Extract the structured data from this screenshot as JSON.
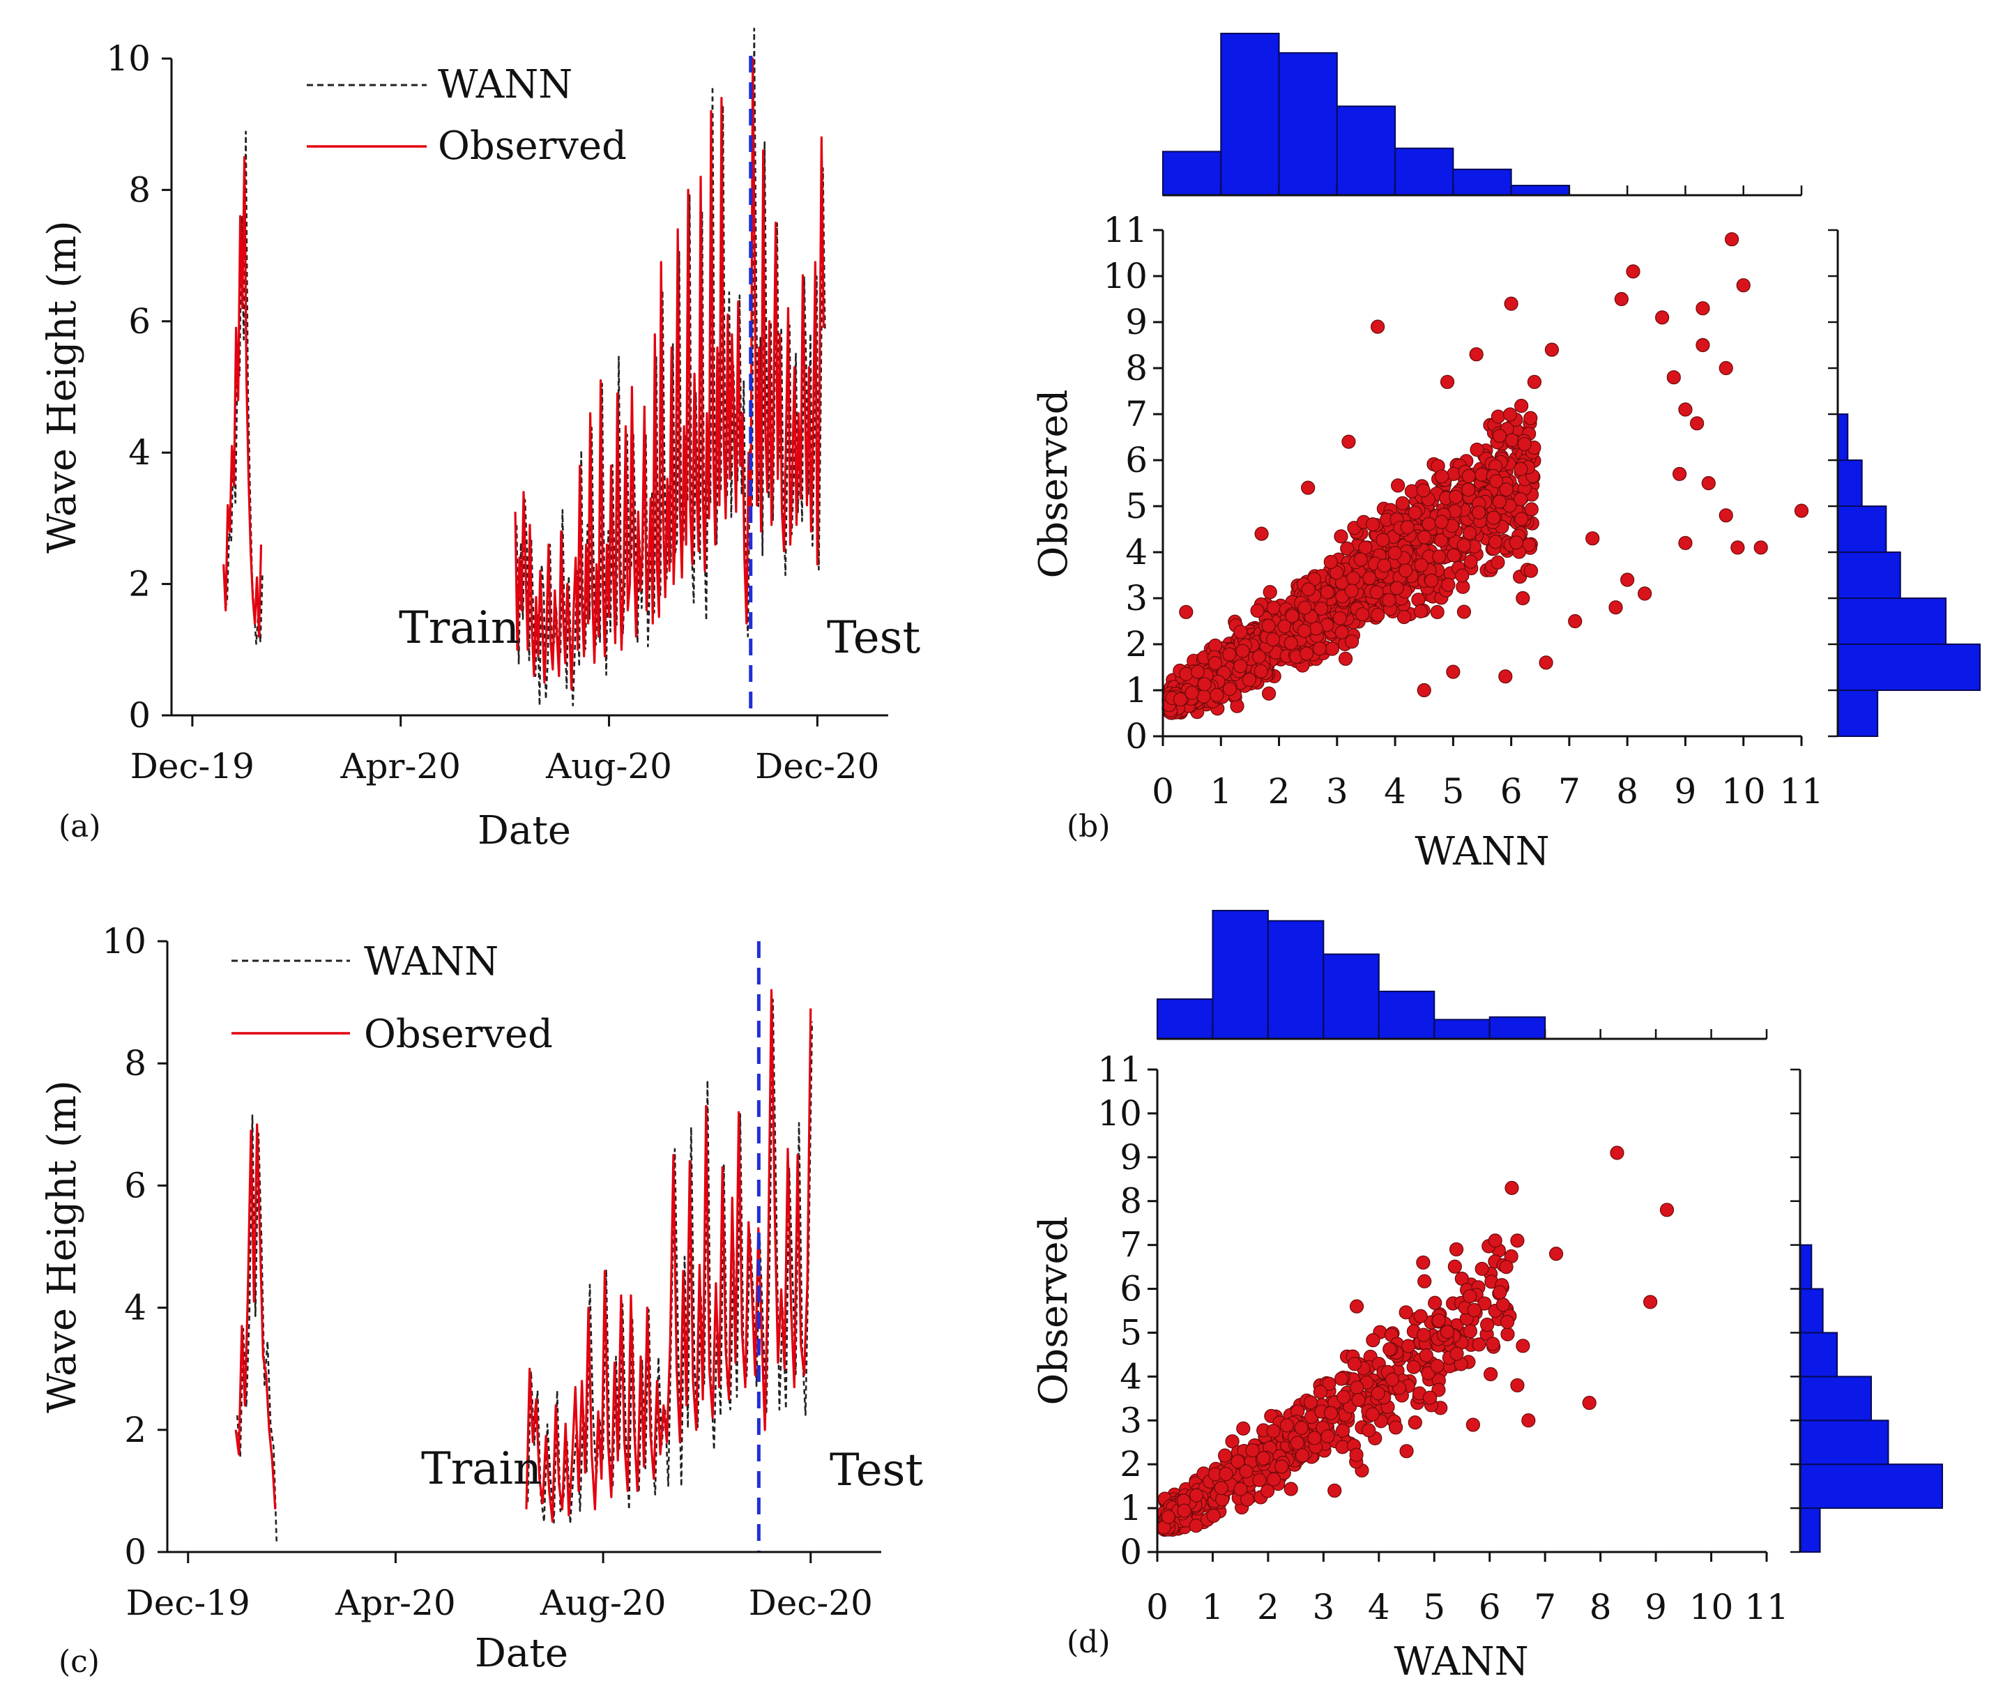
{
  "figure": {
    "panels": [
      "(a)",
      "(b)",
      "(c)",
      "(d)"
    ]
  },
  "colors": {
    "observed": "#e3000f",
    "wann": "#222222",
    "split_line": "#1f2fd6",
    "hist_fill": "#0a18e8",
    "scatter_fill": "#d9131b",
    "scatter_edge": "#6b0a0a"
  },
  "chart_data": [
    {
      "id": "a",
      "type": "line",
      "panel_label": "(a)",
      "xlabel": "Date",
      "ylabel": "Wave Height (m)",
      "ylim": [
        0,
        10
      ],
      "yticks": [
        "0",
        "2",
        "4",
        "6",
        "8",
        "10"
      ],
      "xlim_days": [
        -10,
        334
      ],
      "xticks": [
        {
          "label": "Dec-19",
          "day": 0
        },
        {
          "label": "Apr-20",
          "day": 100
        },
        {
          "label": "Aug-20",
          "day": 200
        },
        {
          "label": "Dec-20",
          "day": 300
        }
      ],
      "legend": [
        "WANN",
        "Observed"
      ],
      "annotations": {
        "train": "Train",
        "test": "Test"
      },
      "split_day": 268,
      "segments": [
        {
          "start_day": 15,
          "end_day": 33,
          "values": [
            2.3,
            1.6,
            3.2,
            2.8,
            4.1,
            3.5,
            5.9,
            4.8,
            7.6,
            6.2,
            8.5,
            5.1,
            3.6,
            2.5,
            1.8,
            1.4,
            2.1,
            1.2,
            2.6
          ]
        },
        {
          "start_day": 155,
          "end_day": 303,
          "values": [
            3.1,
            1.0,
            2.4,
            1.6,
            3.4,
            2.2,
            1.0,
            2.9,
            1.3,
            0.6,
            1.8,
            0.9,
            2.2,
            1.4,
            0.5,
            1.3,
            2.6,
            1.1,
            0.7,
            1.9,
            1.2,
            0.6,
            2.8,
            1.5,
            0.8,
            2.0,
            1.3,
            0.4,
            1.6,
            2.4,
            1.0,
            3.8,
            1.7,
            0.9,
            2.6,
            1.4,
            4.6,
            1.8,
            0.8,
            2.3,
            1.2,
            5.1,
            2.0,
            0.9,
            2.6,
            1.5,
            3.8,
            2.2,
            1.1,
            4.9,
            2.4,
            1.0,
            2.1,
            4.4,
            1.6,
            2.0,
            5.0,
            2.5,
            1.2,
            3.1,
            1.9,
            2.5,
            4.7,
            1.6,
            2.2,
            3.3,
            1.4,
            5.8,
            2.3,
            1.5,
            6.9,
            3.0,
            1.8,
            3.6,
            2.2,
            5.6,
            2.0,
            3.1,
            7.4,
            3.2,
            2.1,
            4.4,
            2.6,
            8.0,
            3.1,
            2.3,
            5.2,
            3.5,
            2.5,
            8.2,
            3.4,
            2.2,
            4.6,
            3.0,
            9.2,
            4.1,
            2.6,
            5.6,
            3.2,
            9.4,
            4.3,
            3.0,
            6.1,
            3.6,
            5.8,
            4.4,
            3.1,
            6.3,
            3.8,
            4.6,
            2.4,
            1.4,
            4.0,
            3.0,
            10.0,
            6.5,
            3.2,
            5.6,
            2.8,
            8.6,
            4.4,
            3.4,
            6.0,
            2.9,
            4.8,
            7.5,
            3.6,
            5.8,
            3.1,
            2.5,
            4.3,
            6.2,
            2.6,
            3.7,
            5.3,
            2.9,
            4.6,
            3.3,
            6.7,
            4.8,
            3.2,
            5.3,
            2.8,
            4.4,
            6.9,
            2.3,
            4.7,
            8.8,
            5.9
          ]
        }
      ]
    },
    {
      "id": "b",
      "type": "scatter",
      "panel_label": "(b)",
      "xlabel": "WANN",
      "ylabel": "Observed",
      "xlim": [
        0,
        11
      ],
      "ylim": [
        0,
        11
      ],
      "xticks": [
        "0",
        "1",
        "2",
        "3",
        "4",
        "5",
        "6",
        "7",
        "8",
        "9",
        "10",
        "11"
      ],
      "yticks": [
        "0",
        "1",
        "2",
        "3",
        "4",
        "5",
        "6",
        "7",
        "8",
        "9",
        "10",
        "11"
      ],
      "points": [
        [
          9.8,
          10.8
        ],
        [
          8.1,
          10.1
        ],
        [
          10.0,
          9.8
        ],
        [
          9.3,
          9.3
        ],
        [
          8.6,
          9.1
        ],
        [
          6.0,
          9.4
        ],
        [
          7.9,
          9.5
        ],
        [
          9.3,
          8.5
        ],
        [
          3.7,
          8.9
        ],
        [
          9.7,
          8.0
        ],
        [
          8.8,
          7.8
        ],
        [
          9.0,
          7.1
        ],
        [
          9.2,
          6.8
        ],
        [
          8.9,
          5.7
        ],
        [
          9.4,
          5.5
        ],
        [
          9.7,
          4.8
        ],
        [
          9.9,
          4.1
        ],
        [
          10.3,
          4.1
        ],
        [
          11.0,
          4.9
        ],
        [
          9.0,
          4.2
        ],
        [
          8.0,
          3.4
        ],
        [
          8.3,
          3.1
        ],
        [
          7.8,
          2.8
        ],
        [
          7.1,
          2.5
        ],
        [
          6.6,
          1.6
        ],
        [
          5.9,
          1.3
        ],
        [
          5.0,
          1.4
        ],
        [
          4.5,
          1.0
        ],
        [
          6.2,
          3.0
        ],
        [
          7.4,
          4.3
        ],
        [
          6.4,
          7.7
        ],
        [
          6.7,
          8.4
        ],
        [
          5.4,
          8.3
        ],
        [
          4.9,
          7.7
        ],
        [
          3.2,
          6.4
        ],
        [
          2.5,
          5.4
        ],
        [
          1.7,
          4.4
        ],
        [
          0.4,
          2.7
        ],
        [
          0.6,
          1.4
        ],
        [
          0.3,
          0.8
        ]
      ],
      "cloud_count": 1500,
      "x_hist": {
        "bins": [
          0,
          1,
          2,
          3,
          4,
          5,
          6,
          7,
          8,
          9,
          10,
          11
        ],
        "freq": [
          0.27,
          1.0,
          0.88,
          0.55,
          0.29,
          0.16,
          0.06,
          0,
          0,
          0,
          0
        ]
      },
      "y_hist": {
        "bins": [
          0,
          1,
          2,
          3,
          4,
          5,
          6,
          7
        ],
        "freq": [
          0.28,
          1.0,
          0.76,
          0.44,
          0.34,
          0.17,
          0.07
        ]
      }
    },
    {
      "id": "c",
      "type": "line",
      "panel_label": "(c)",
      "xlabel": "Date",
      "ylabel": "Wave Height (m)",
      "ylim": [
        0,
        10
      ],
      "yticks": [
        "0",
        "2",
        "4",
        "6",
        "8",
        "10"
      ],
      "xlim_days": [
        -10,
        334
      ],
      "xticks": [
        {
          "label": "Dec-19",
          "day": 0
        },
        {
          "label": "Apr-20",
          "day": 100
        },
        {
          "label": "Aug-20",
          "day": 200
        },
        {
          "label": "Dec-20",
          "day": 300
        }
      ],
      "legend": [
        "WANN",
        "Observed"
      ],
      "annotations": {
        "train": "Train",
        "test": "Test"
      },
      "split_day": 275,
      "segments": [
        {
          "start_day": 23,
          "end_day": 42,
          "values": [
            2.0,
            1.6,
            3.7,
            2.4,
            4.3,
            6.9,
            4.1,
            7.0,
            5.1,
            3.2,
            2.9,
            2.0,
            1.5,
            0.7
          ]
        },
        {
          "start_day": 163,
          "end_day": 300,
          "values": [
            0.7,
            3.0,
            1.8,
            2.5,
            1.2,
            0.8,
            1.9,
            1.0,
            0.5,
            2.4,
            1.1,
            0.7,
            2.1,
            0.6,
            1.5,
            2.7,
            1.0,
            2.8,
            1.3,
            4.0,
            1.6,
            0.7,
            2.3,
            1.2,
            4.6,
            1.8,
            0.9,
            3.1,
            1.5,
            4.2,
            1.8,
            1.0,
            4.2,
            2.0,
            1.0,
            3.2,
            1.4,
            4.0,
            1.9,
            1.2,
            2.8,
            1.6,
            2.4,
            1.8,
            3.4,
            6.5,
            3.0,
            1.8,
            4.6,
            2.4,
            6.4,
            2.8,
            2.0,
            4.7,
            2.5,
            7.3,
            3.0,
            2.2,
            4.4,
            2.7,
            6.3,
            3.3,
            2.5,
            5.8,
            3.1,
            7.2,
            3.6,
            2.7,
            5.4,
            4.3,
            2.9,
            5.3,
            3.6,
            2.0,
            4.8,
            9.2,
            5.6,
            3.1,
            4.3,
            3.0,
            6.6,
            4.0,
            2.7,
            6.5,
            3.4,
            2.9,
            4.4,
            8.9
          ]
        }
      ]
    },
    {
      "id": "d",
      "type": "scatter",
      "panel_label": "(d)",
      "xlabel": "WANN",
      "ylabel": "Observed",
      "xlim": [
        0,
        11
      ],
      "ylim": [
        0,
        11
      ],
      "xticks": [
        "0",
        "1",
        "2",
        "3",
        "4",
        "5",
        "6",
        "7",
        "8",
        "9",
        "10",
        "11"
      ],
      "yticks": [
        "0",
        "1",
        "2",
        "3",
        "4",
        "5",
        "6",
        "7",
        "8",
        "9",
        "10",
        "11"
      ],
      "points": [
        [
          8.3,
          9.1
        ],
        [
          6.4,
          8.3
        ],
        [
          9.2,
          7.8
        ],
        [
          6.1,
          7.1
        ],
        [
          6.5,
          7.1
        ],
        [
          7.2,
          6.8
        ],
        [
          5.4,
          6.9
        ],
        [
          6.3,
          6.5
        ],
        [
          8.9,
          5.7
        ],
        [
          6.6,
          4.7
        ],
        [
          6.5,
          3.8
        ],
        [
          6.7,
          3.0
        ],
        [
          7.8,
          3.4
        ],
        [
          5.7,
          2.9
        ],
        [
          4.5,
          2.3
        ],
        [
          3.2,
          1.4
        ],
        [
          3.6,
          5.6
        ],
        [
          4.8,
          6.6
        ],
        [
          0.2,
          0.8
        ],
        [
          0.7,
          0.6
        ]
      ],
      "cloud_count": 560,
      "x_hist": {
        "bins": [
          0,
          1,
          2,
          3,
          4,
          5,
          6,
          7,
          8,
          9,
          10,
          11
        ],
        "freq": [
          0.31,
          1.0,
          0.92,
          0.66,
          0.37,
          0.15,
          0.17,
          0,
          0,
          0,
          0
        ]
      },
      "y_hist": {
        "bins": [
          0,
          1,
          2,
          3,
          4,
          5,
          6,
          7
        ],
        "freq": [
          0.14,
          1.0,
          0.62,
          0.5,
          0.26,
          0.16,
          0.08
        ]
      }
    }
  ]
}
